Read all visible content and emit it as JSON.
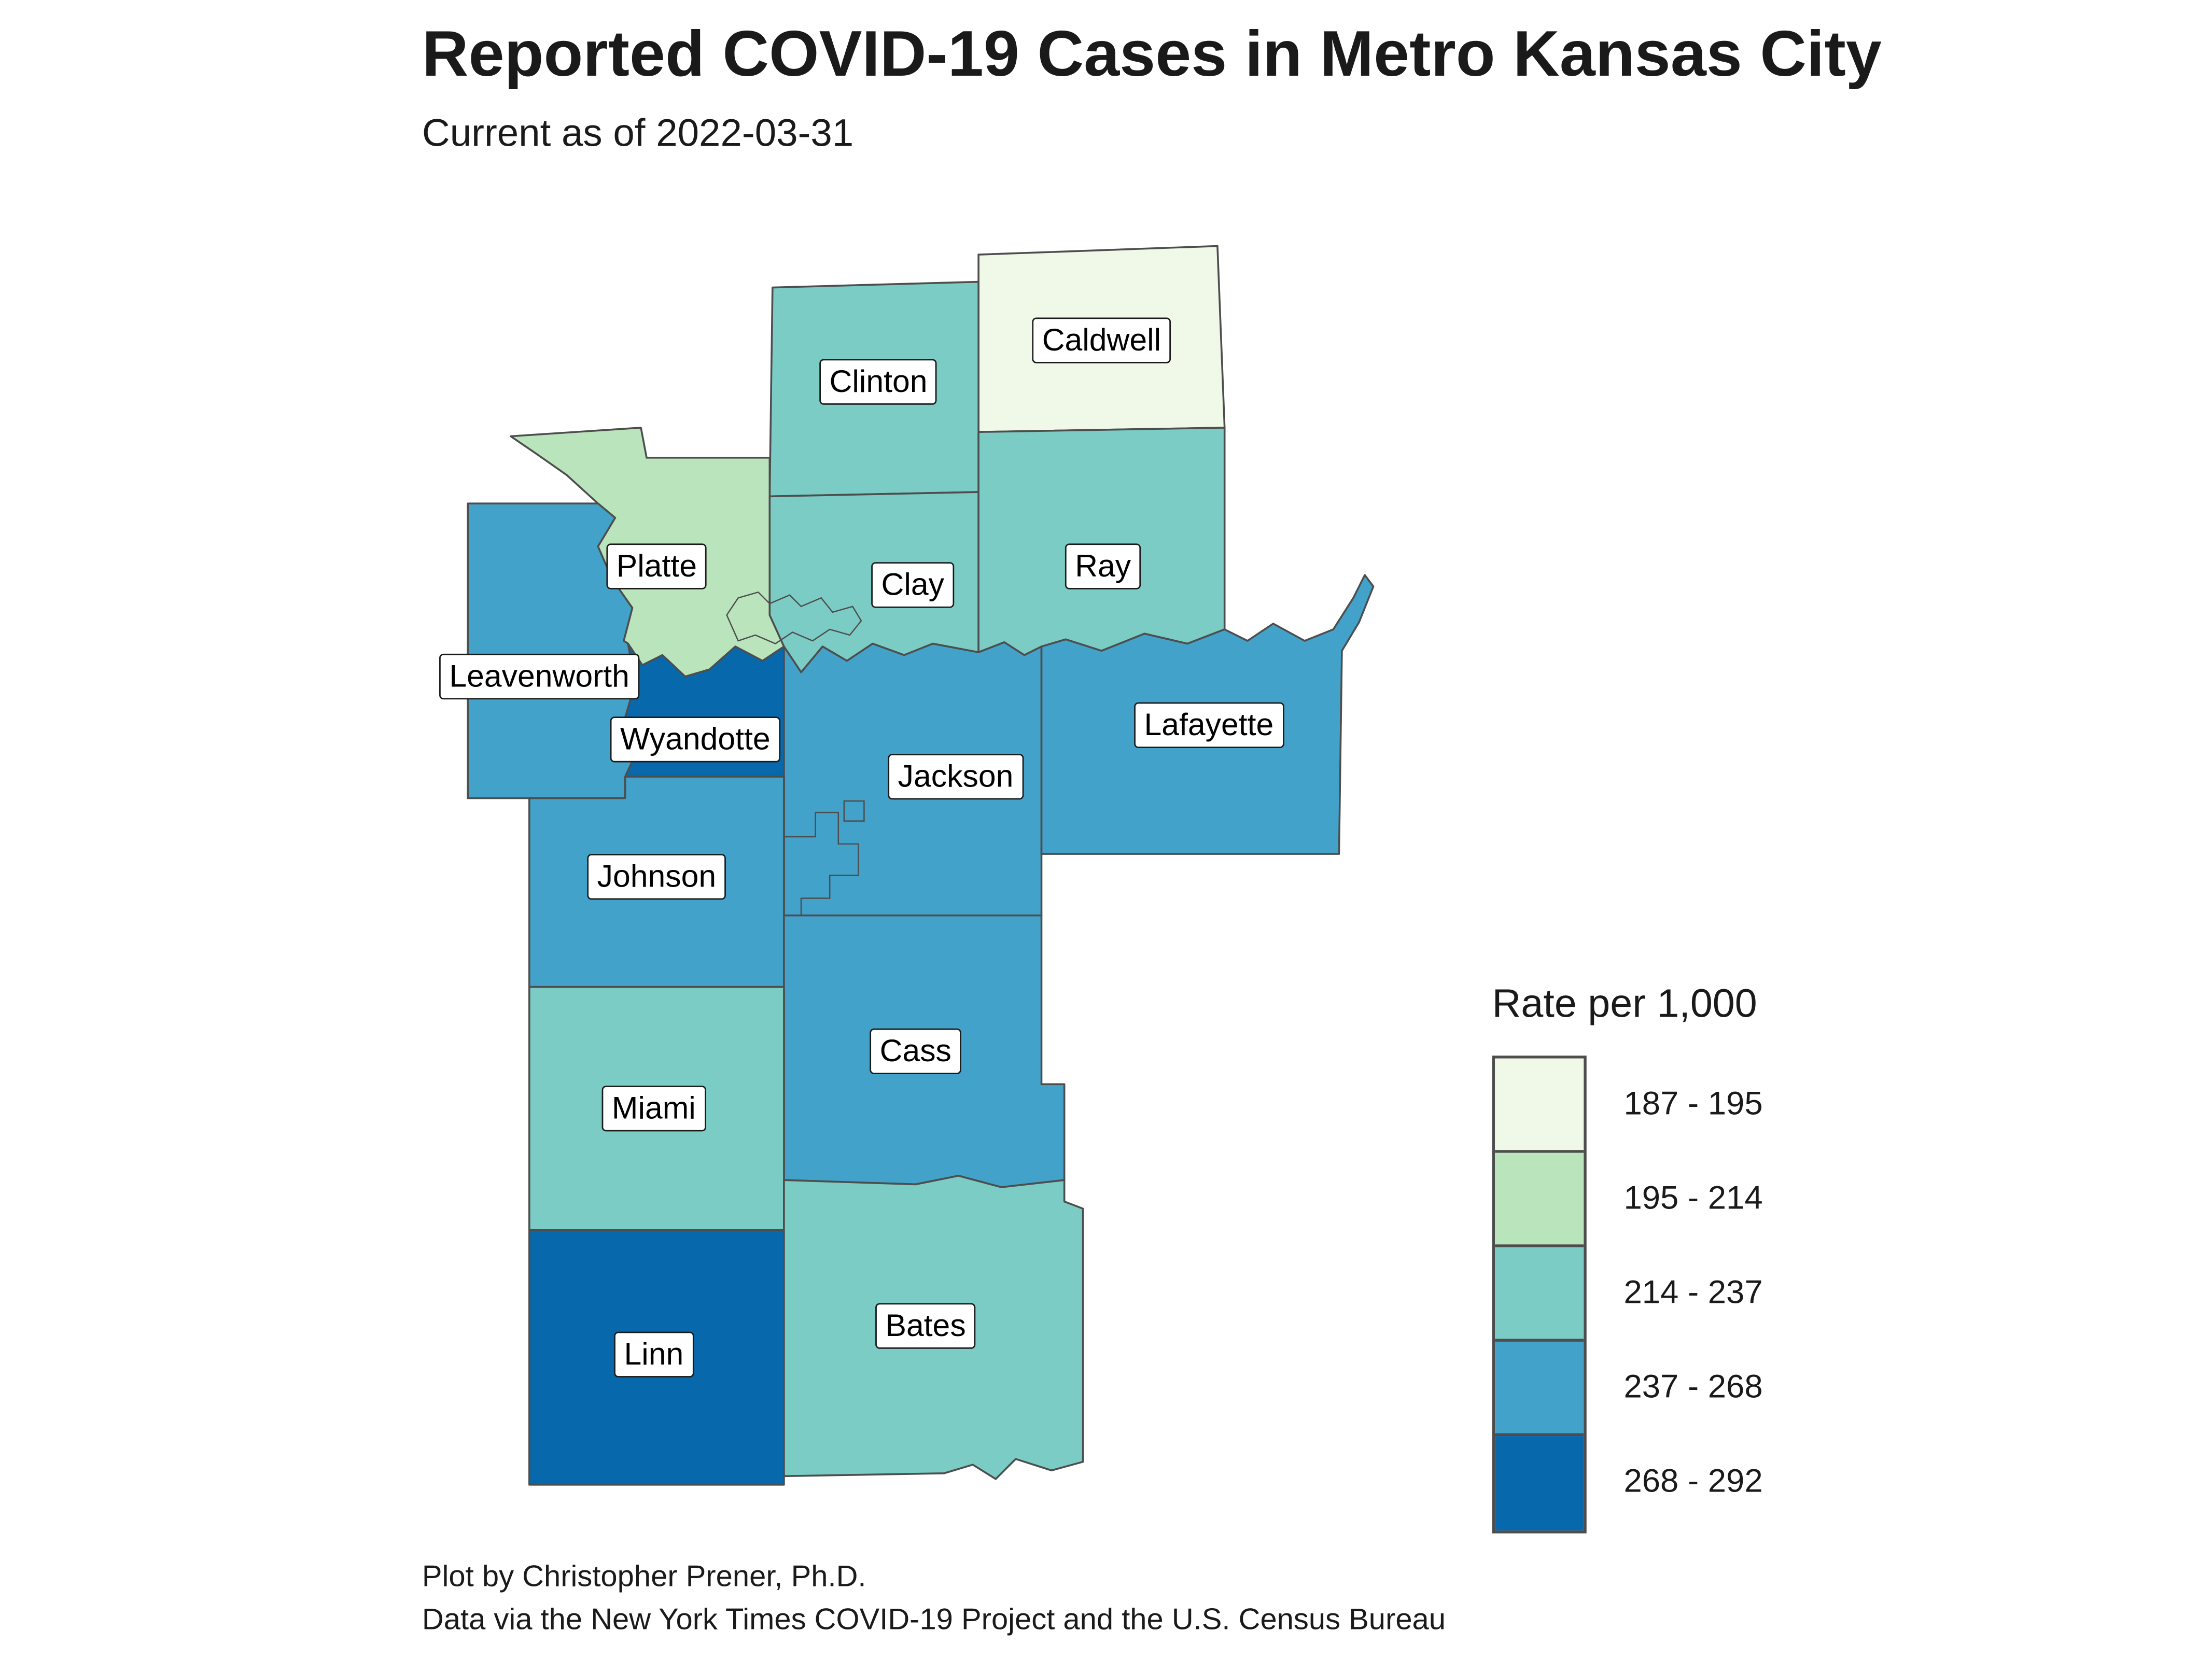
{
  "title": "Reported COVID-19 Cases in Metro Kansas City",
  "subtitle": "Current as of 2022-03-31",
  "caption": {
    "line1": "Plot by Christopher Prener, Ph.D.",
    "line2": "Data via the New York Times COVID-19 Project and the U.S. Census Bureau"
  },
  "legend": {
    "title": "Rate per 1,000",
    "classes": [
      {
        "label": "187 - 195",
        "color": "#f0f9e8"
      },
      {
        "label": "195 - 214",
        "color": "#bae4bc"
      },
      {
        "label": "214 - 237",
        "color": "#7bccc4"
      },
      {
        "label": "237 - 268",
        "color": "#43a2ca"
      },
      {
        "label": "268 - 292",
        "color": "#0868ac"
      }
    ]
  },
  "map": {
    "stroke_color": "#4d4d4d",
    "background": "#ffffff"
  },
  "chart_data": {
    "type": "choropleth-map",
    "region": "Metro Kansas City counties",
    "measure": "Reported COVID-19 case rate per 1,000 residents",
    "class_breaks": [
      187,
      195,
      214,
      237,
      268,
      292
    ],
    "counties": [
      {
        "name": "Caldwell",
        "rate_class": "187 - 195"
      },
      {
        "name": "Clinton",
        "rate_class": "214 - 237"
      },
      {
        "name": "Platte",
        "rate_class": "195 - 214"
      },
      {
        "name": "Clay",
        "rate_class": "214 - 237"
      },
      {
        "name": "Ray",
        "rate_class": "214 - 237"
      },
      {
        "name": "Leavenworth",
        "rate_class": "237 - 268"
      },
      {
        "name": "Wyandotte",
        "rate_class": "268 - 292"
      },
      {
        "name": "Jackson",
        "rate_class": "237 - 268"
      },
      {
        "name": "Lafayette",
        "rate_class": "237 - 268"
      },
      {
        "name": "Johnson",
        "rate_class": "237 - 268"
      },
      {
        "name": "Cass",
        "rate_class": "237 - 268"
      },
      {
        "name": "Miami",
        "rate_class": "214 - 237"
      },
      {
        "name": "Linn",
        "rate_class": "268 - 292"
      },
      {
        "name": "Bates",
        "rate_class": "214 - 237"
      }
    ]
  }
}
